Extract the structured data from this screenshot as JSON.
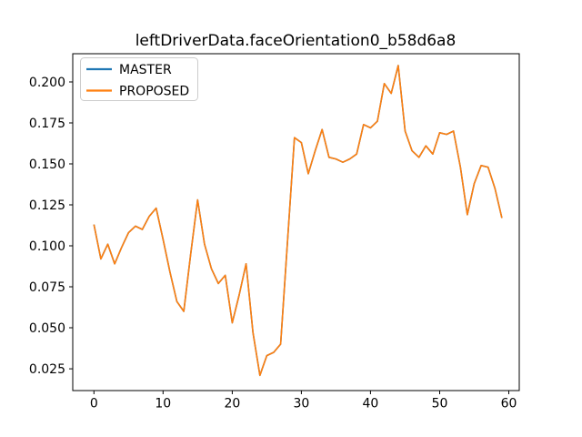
{
  "figure": {
    "title": "leftDriverData.faceOrientation0_b58d6a8"
  },
  "legend": {
    "items": [
      {
        "label": "MASTER",
        "color": "#1f77b4"
      },
      {
        "label": "PROPOSED",
        "color": "#ff7f0e"
      }
    ]
  },
  "chart_data": {
    "type": "line",
    "title": "leftDriverData.faceOrientation0_b58d6a8",
    "xlabel": "",
    "ylabel": "",
    "grid": false,
    "legend_position": "upper left",
    "note_visible_in_pixels": "MASTER and PROPOSED lines overlap exactly; only the orange PROPOSED trace is visible on top",
    "x": [
      0,
      1,
      2,
      3,
      4,
      5,
      6,
      7,
      8,
      9,
      10,
      11,
      12,
      13,
      14,
      15,
      16,
      17,
      18,
      19,
      20,
      21,
      22,
      23,
      24,
      25,
      26,
      27,
      28,
      29,
      30,
      31,
      32,
      33,
      34,
      35,
      36,
      37,
      38,
      39,
      40,
      41,
      42,
      43,
      44,
      45,
      46,
      47,
      48,
      49,
      50,
      51,
      52,
      53,
      54,
      55,
      56,
      57,
      58,
      59
    ],
    "series": [
      {
        "name": "MASTER",
        "color": "#1f77b4",
        "values": [
          0.113,
          0.092,
          0.101,
          0.089,
          0.099,
          0.108,
          0.112,
          0.11,
          0.118,
          0.123,
          0.104,
          0.084,
          0.066,
          0.06,
          0.095,
          0.128,
          0.101,
          0.086,
          0.077,
          0.082,
          0.053,
          0.07,
          0.089,
          0.047,
          0.021,
          0.033,
          0.035,
          0.04,
          0.103,
          0.166,
          0.163,
          0.144,
          0.158,
          0.171,
          0.154,
          0.153,
          0.151,
          0.153,
          0.156,
          0.174,
          0.172,
          0.176,
          0.199,
          0.193,
          0.21,
          0.17,
          0.158,
          0.154,
          0.161,
          0.156,
          0.169,
          0.168,
          0.17,
          0.148,
          0.119,
          0.138,
          0.149,
          0.148,
          0.135,
          0.117
        ]
      },
      {
        "name": "PROPOSED",
        "color": "#ff7f0e",
        "values": [
          0.113,
          0.092,
          0.101,
          0.089,
          0.099,
          0.108,
          0.112,
          0.11,
          0.118,
          0.123,
          0.104,
          0.084,
          0.066,
          0.06,
          0.095,
          0.128,
          0.101,
          0.086,
          0.077,
          0.082,
          0.053,
          0.07,
          0.089,
          0.047,
          0.021,
          0.033,
          0.035,
          0.04,
          0.103,
          0.166,
          0.163,
          0.144,
          0.158,
          0.171,
          0.154,
          0.153,
          0.151,
          0.153,
          0.156,
          0.174,
          0.172,
          0.176,
          0.199,
          0.193,
          0.21,
          0.17,
          0.158,
          0.154,
          0.161,
          0.156,
          0.169,
          0.168,
          0.17,
          0.148,
          0.119,
          0.138,
          0.149,
          0.148,
          0.135,
          0.117
        ]
      }
    ],
    "xlim": [
      -3.06,
      61.51
    ],
    "ylim": [
      0.0117,
      0.2172
    ],
    "xticks": [
      0,
      10,
      20,
      30,
      40,
      50,
      60
    ],
    "xtick_labels": [
      "0",
      "10",
      "20",
      "30",
      "40",
      "50",
      "60"
    ],
    "yticks": [
      0.025,
      0.05,
      0.075,
      0.1,
      0.125,
      0.15,
      0.175,
      0.2
    ],
    "ytick_labels": [
      "0.025",
      "0.050",
      "0.075",
      "0.100",
      "0.125",
      "0.150",
      "0.175",
      "0.200"
    ]
  }
}
